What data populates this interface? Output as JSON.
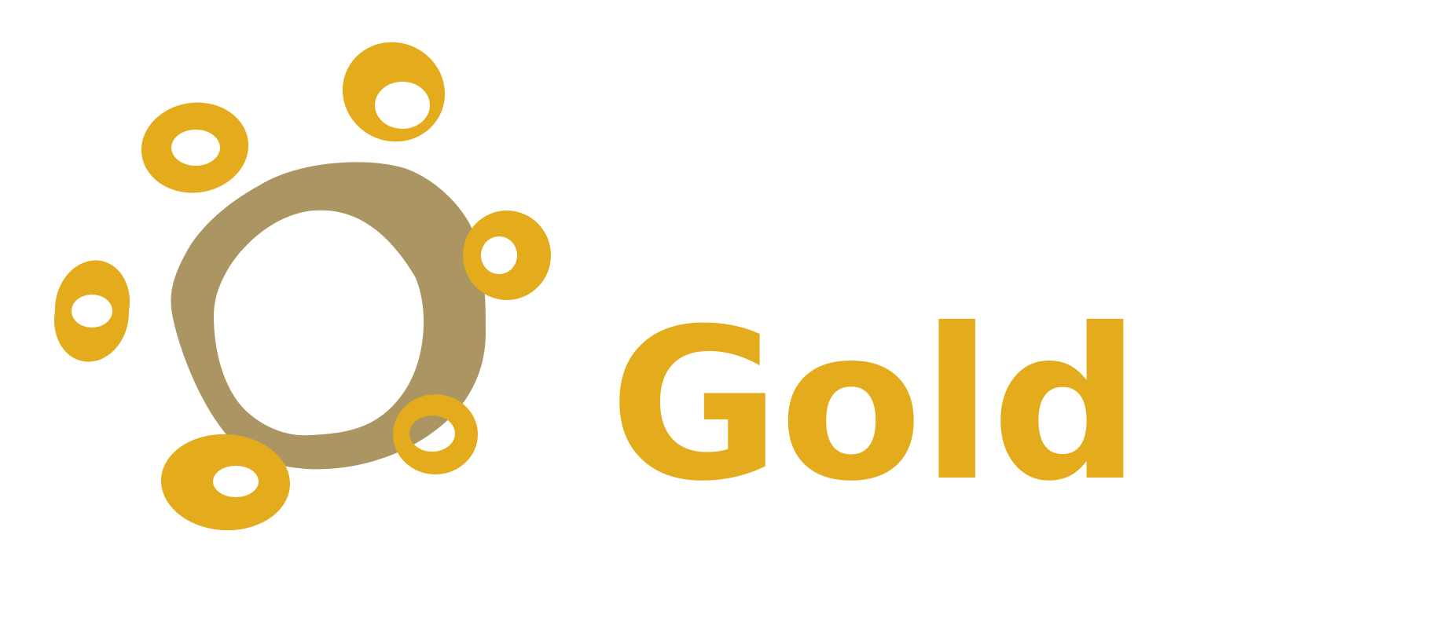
{
  "brand": {
    "name": "Gold",
    "colors": {
      "gold": "#E4AB1D",
      "ring": "#AB9562",
      "background": "#FFFFFF"
    }
  },
  "logo": {
    "icon": "gold-nugget-ring-icon"
  }
}
